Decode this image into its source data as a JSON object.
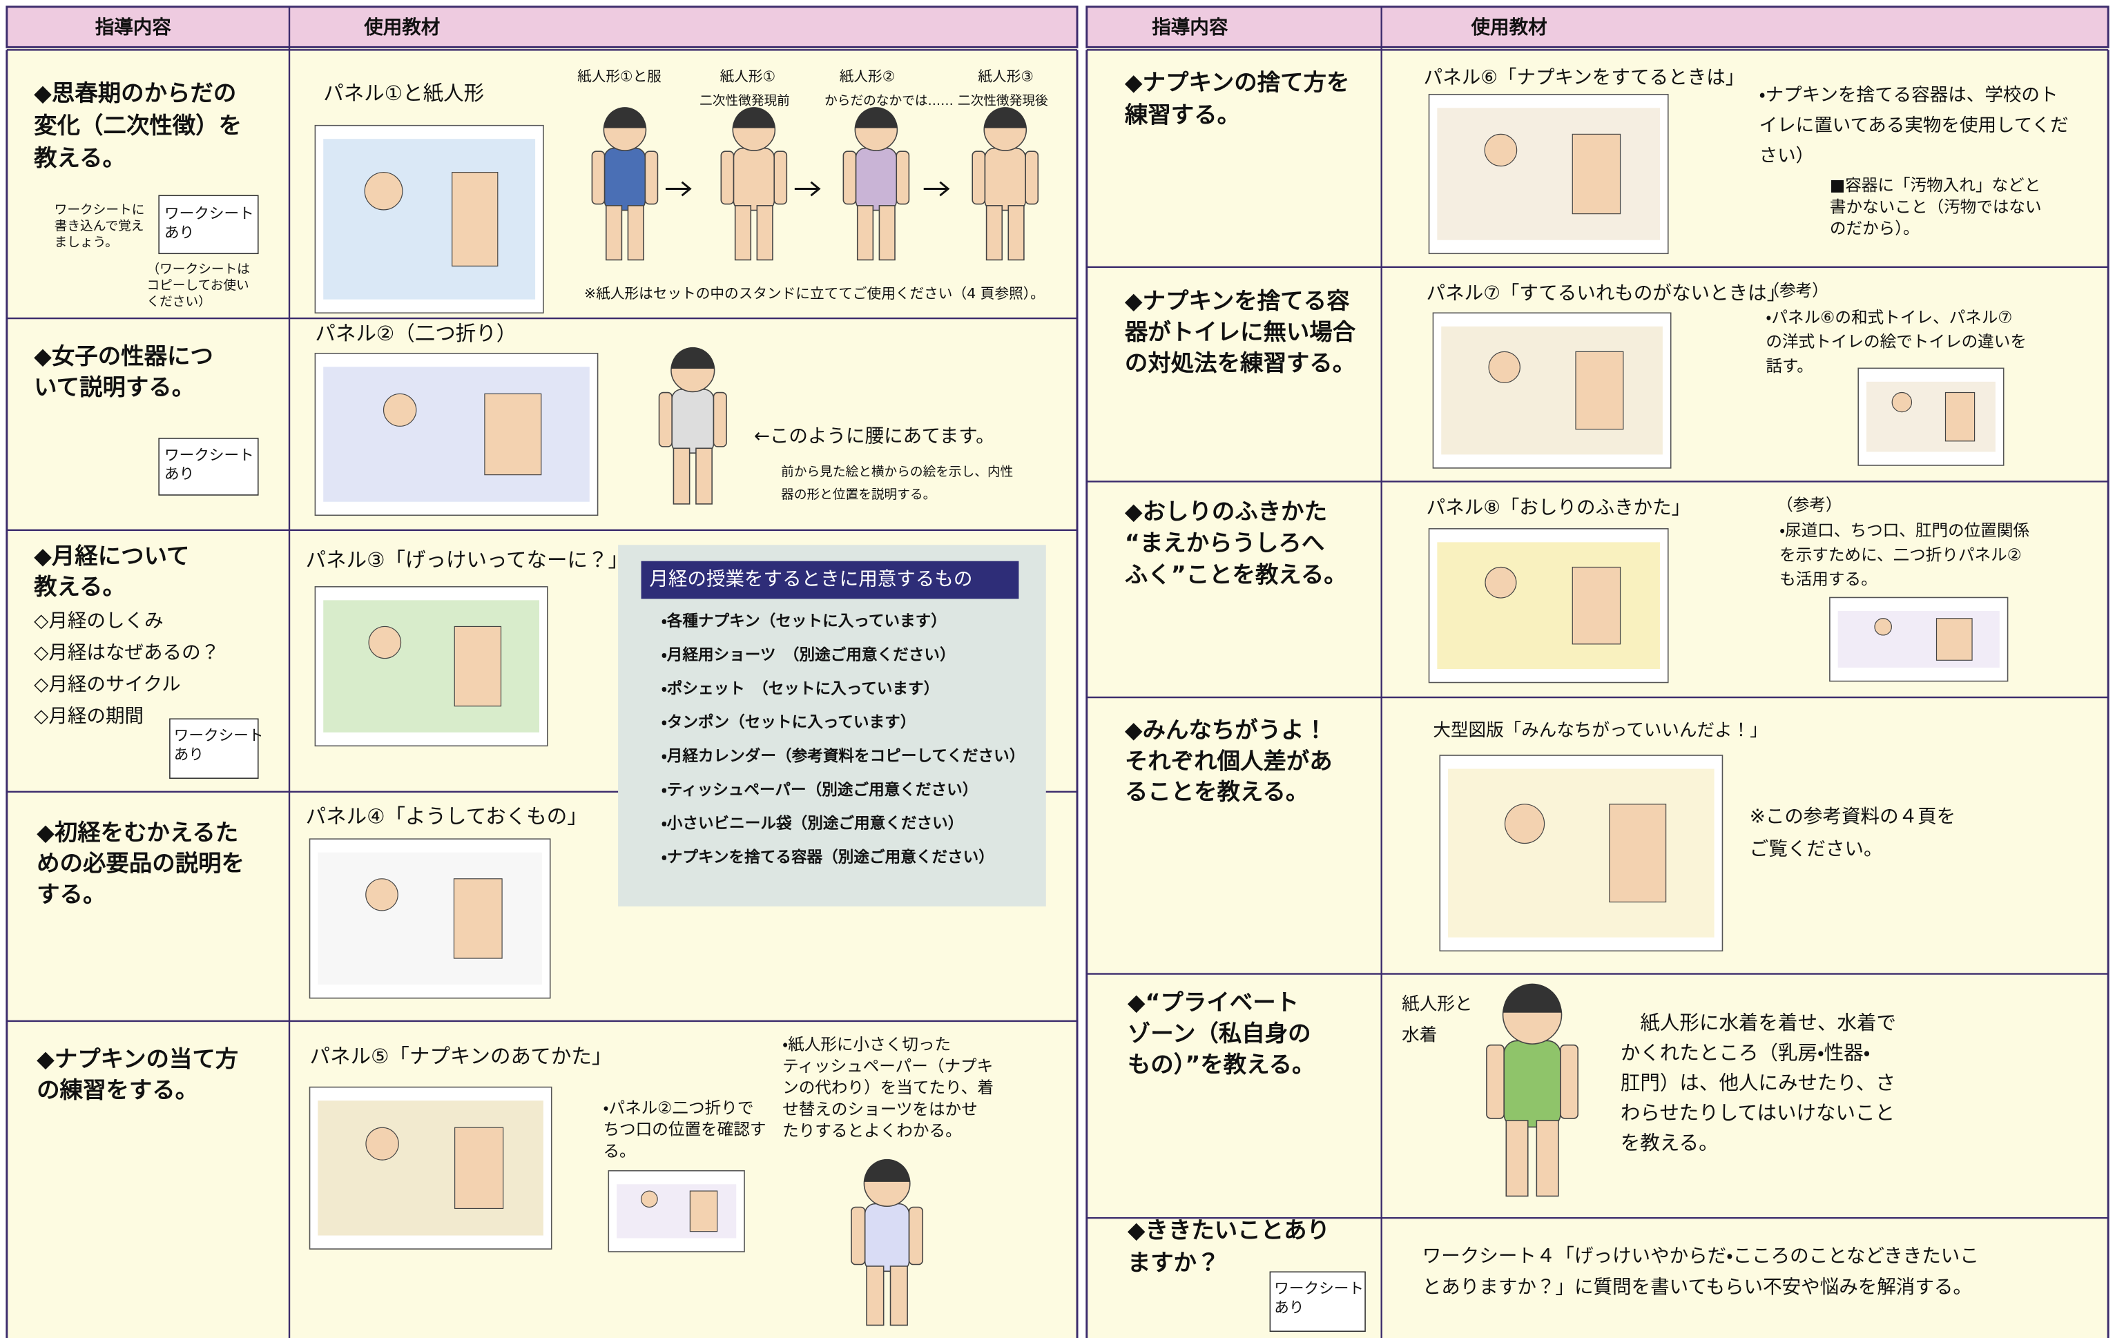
{
  "left_table": {
    "header": [
      "指導内容",
      "使用教材"
    ],
    "rows": [
      {
        "topic": [
          "◆思春期のからだの",
          "変化（二次性徴）を",
          "教える。"
        ],
        "note": [
          "ワークシートに",
          "書き込んで覚え",
          "ましょう。"
        ],
        "worksheet": [
          "ワークシート",
          "あり"
        ],
        "note2": [
          "（ワークシートは",
          "コピーしてお使い",
          "ください）"
        ],
        "material": "パネル①と紙人形",
        "figure_labels": [
          "紙人形①と服",
          "紙人形①",
          "紙人形②",
          "紙人形③"
        ],
        "figure_captions": [
          "二次性徴発現前",
          "からだのなかでは……",
          "二次性徴発現後"
        ],
        "footnote": "※紙人形はセットの中のスタンドに立ててご使用ください（4 頁参照）。"
      },
      {
        "topic": [
          "◆女子の性器につ",
          "いて説明する。"
        ],
        "worksheet": [
          "ワークシート",
          "あり"
        ],
        "material": "パネル②（二つ折り）",
        "callout": "←このように腰にあてます。",
        "note": [
          "前から見た絵と横からの絵を示し、内性",
          "器の形と位置を説明する。"
        ]
      },
      {
        "topic": [
          "◆月経について",
          "教える。"
        ],
        "subtopics": [
          "◇月経のしくみ",
          "◇月経はなぜあるの？",
          "◇月経のサイクル",
          "◇月経の期間"
        ],
        "worksheet": [
          "ワークシート",
          "あり"
        ],
        "material": "パネル③「げっけいってなーに？」"
      },
      {
        "topic": [
          "◆初経をむかえるた",
          "めの必要品の説明を",
          "する。"
        ],
        "material": "パネル④「ようしておくもの」"
      },
      {
        "topic": [
          "◆ナプキンの当て方",
          "の練習をする。"
        ],
        "material": "パネル⑤「ナプキンのあてかた」",
        "note": [
          "・パネル②二つ折りで",
          "ちつ口の位置を確認す",
          "る。"
        ],
        "note2": [
          "・紙人形に小さく切った",
          "ティッシュペーパー（ナプキ",
          "ンの代わり）を当てたり、着",
          "せ替えのショーツをはかせ",
          "たりするとよくわかる。"
        ]
      }
    ]
  },
  "supplies": {
    "title": "月経の授業をするときに用意するもの",
    "items": [
      "・各種ナプキン（セットに入っています）",
      "・月経用ショーツ　（別途ご用意ください）",
      "・ポシェット　（セットに入っています）",
      "・タンポン（セットに入っています）",
      "・月経カレンダー（参考資料をコピーしてください）",
      "・ティッシュペーパー（別途ご用意ください）",
      "・小さいビニール袋（別途ご用意ください）",
      "・ナプキンを捨てる容器（別途ご用意ください）"
    ]
  },
  "right_table": {
    "header": [
      "指導内容",
      "使用教材"
    ],
    "rows": [
      {
        "topic": [
          "◆ナプキンの捨て方を",
          "練習する。"
        ],
        "material": "パネル⑥「ナプキンをすてるときは」",
        "note": [
          "・ナプキンを捨てる容器は、学校のト",
          "イレに置いてある実物を使用してくだ",
          "さい）"
        ],
        "note2": [
          "■容器に「汚物入れ」などと",
          "書かないこと（汚物ではない",
          "のだから）。"
        ]
      },
      {
        "topic": [
          "◆ナプキンを捨てる容",
          "器がトイレに無い場合",
          "の対処法を練習する。"
        ],
        "material": "パネル⑦「すてるいれものがないときは」",
        "ref": "（参考）",
        "note": [
          "・パネル⑥の和式トイレ、パネル⑦",
          "の洋式トイレの絵でトイレの違いを",
          "話す。"
        ]
      },
      {
        "topic": [
          "◆おしりのふきかた",
          "“まえからうしろへ",
          "ふく”ことを教える。"
        ],
        "material": "パネル⑧「おしりのふきかた」",
        "ref": "（参考）",
        "note": [
          "・尿道口、ちつ口、肛門の位置関係",
          "を示すために、二つ折りパネル②",
          "も活用する。"
        ]
      },
      {
        "topic": [
          "◆みんなちがうよ！",
          "それぞれ個人差があ",
          "ることを教える。"
        ],
        "material": "大型図版「みんなちがっていいんだよ！」",
        "note": [
          "※この参考資料の４頁を",
          "ご覧ください。"
        ]
      },
      {
        "topic": [
          "◆“プライベート",
          "ゾーン（私自身の",
          "もの）”を教える。"
        ],
        "material": [
          "紙人形と",
          "水着"
        ],
        "note": [
          "　紙人形に水着を着せ、水着で",
          "かくれたところ（乳房・性器・",
          "肛門）は、他人にみせたり、さ",
          "わらせたりしてはいけないこと",
          "を教える。"
        ]
      },
      {
        "topic": [
          "◆ききたいことあり",
          "ますか？"
        ],
        "worksheet": [
          "ワークシート",
          "あり"
        ],
        "note": [
          "ワークシート４「げっけいやからだ・こころのことなどききたいこ",
          "とありますか？」に質問を書いてもらい不安や悩みを解消する。"
        ]
      }
    ]
  }
}
